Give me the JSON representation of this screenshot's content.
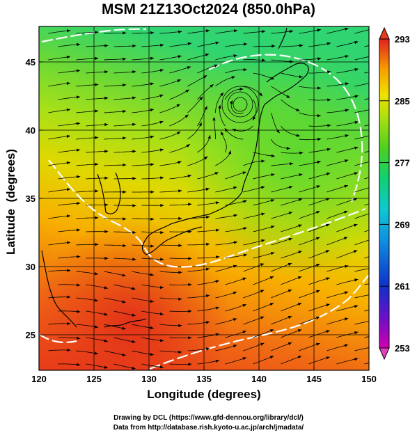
{
  "title": "MSM 21Z13Oct2024 (850.0hPa)",
  "axes": {
    "xlabel": "Longitude (degrees)",
    "ylabel": "Latitude  (degrees)",
    "x_ticks": [
      "120",
      "125",
      "130",
      "135",
      "140",
      "145",
      "150"
    ],
    "y_ticks": [
      "25",
      "30",
      "35",
      "40",
      "45"
    ],
    "xlim": [
      120,
      150
    ],
    "ylim": [
      22.4,
      47.6
    ]
  },
  "colorbar": {
    "labels": [
      "293",
      "285",
      "277",
      "269",
      "261",
      "253"
    ],
    "range": [
      253,
      293
    ],
    "colors": [
      "#d000b0",
      "#6a10c8",
      "#1030c8",
      "#1090e0",
      "#10c8d0",
      "#10d070",
      "#50d020",
      "#b0e010",
      "#f0e000",
      "#f8a000",
      "#f05010",
      "#e02020"
    ]
  },
  "field_colors": {
    "warm": "#e83a1a",
    "mid": "#f8b000",
    "cool": "#90dc20",
    "cold": "#28d070",
    "isotherm": "#ffffff",
    "coastline": "#000000",
    "streamline": "#000000"
  },
  "map_features": {
    "low_center": "cyclone near 137E 41N",
    "fields": "850 hPa temperature (K) with wind streamlines"
  },
  "credit": {
    "line1": "Drawing by DCL (https://www.gfd-dennou.org/library/dcl/)",
    "line2": "Data from http://database.rish.kyoto-u.ac.jp/arch/jmadata/"
  }
}
